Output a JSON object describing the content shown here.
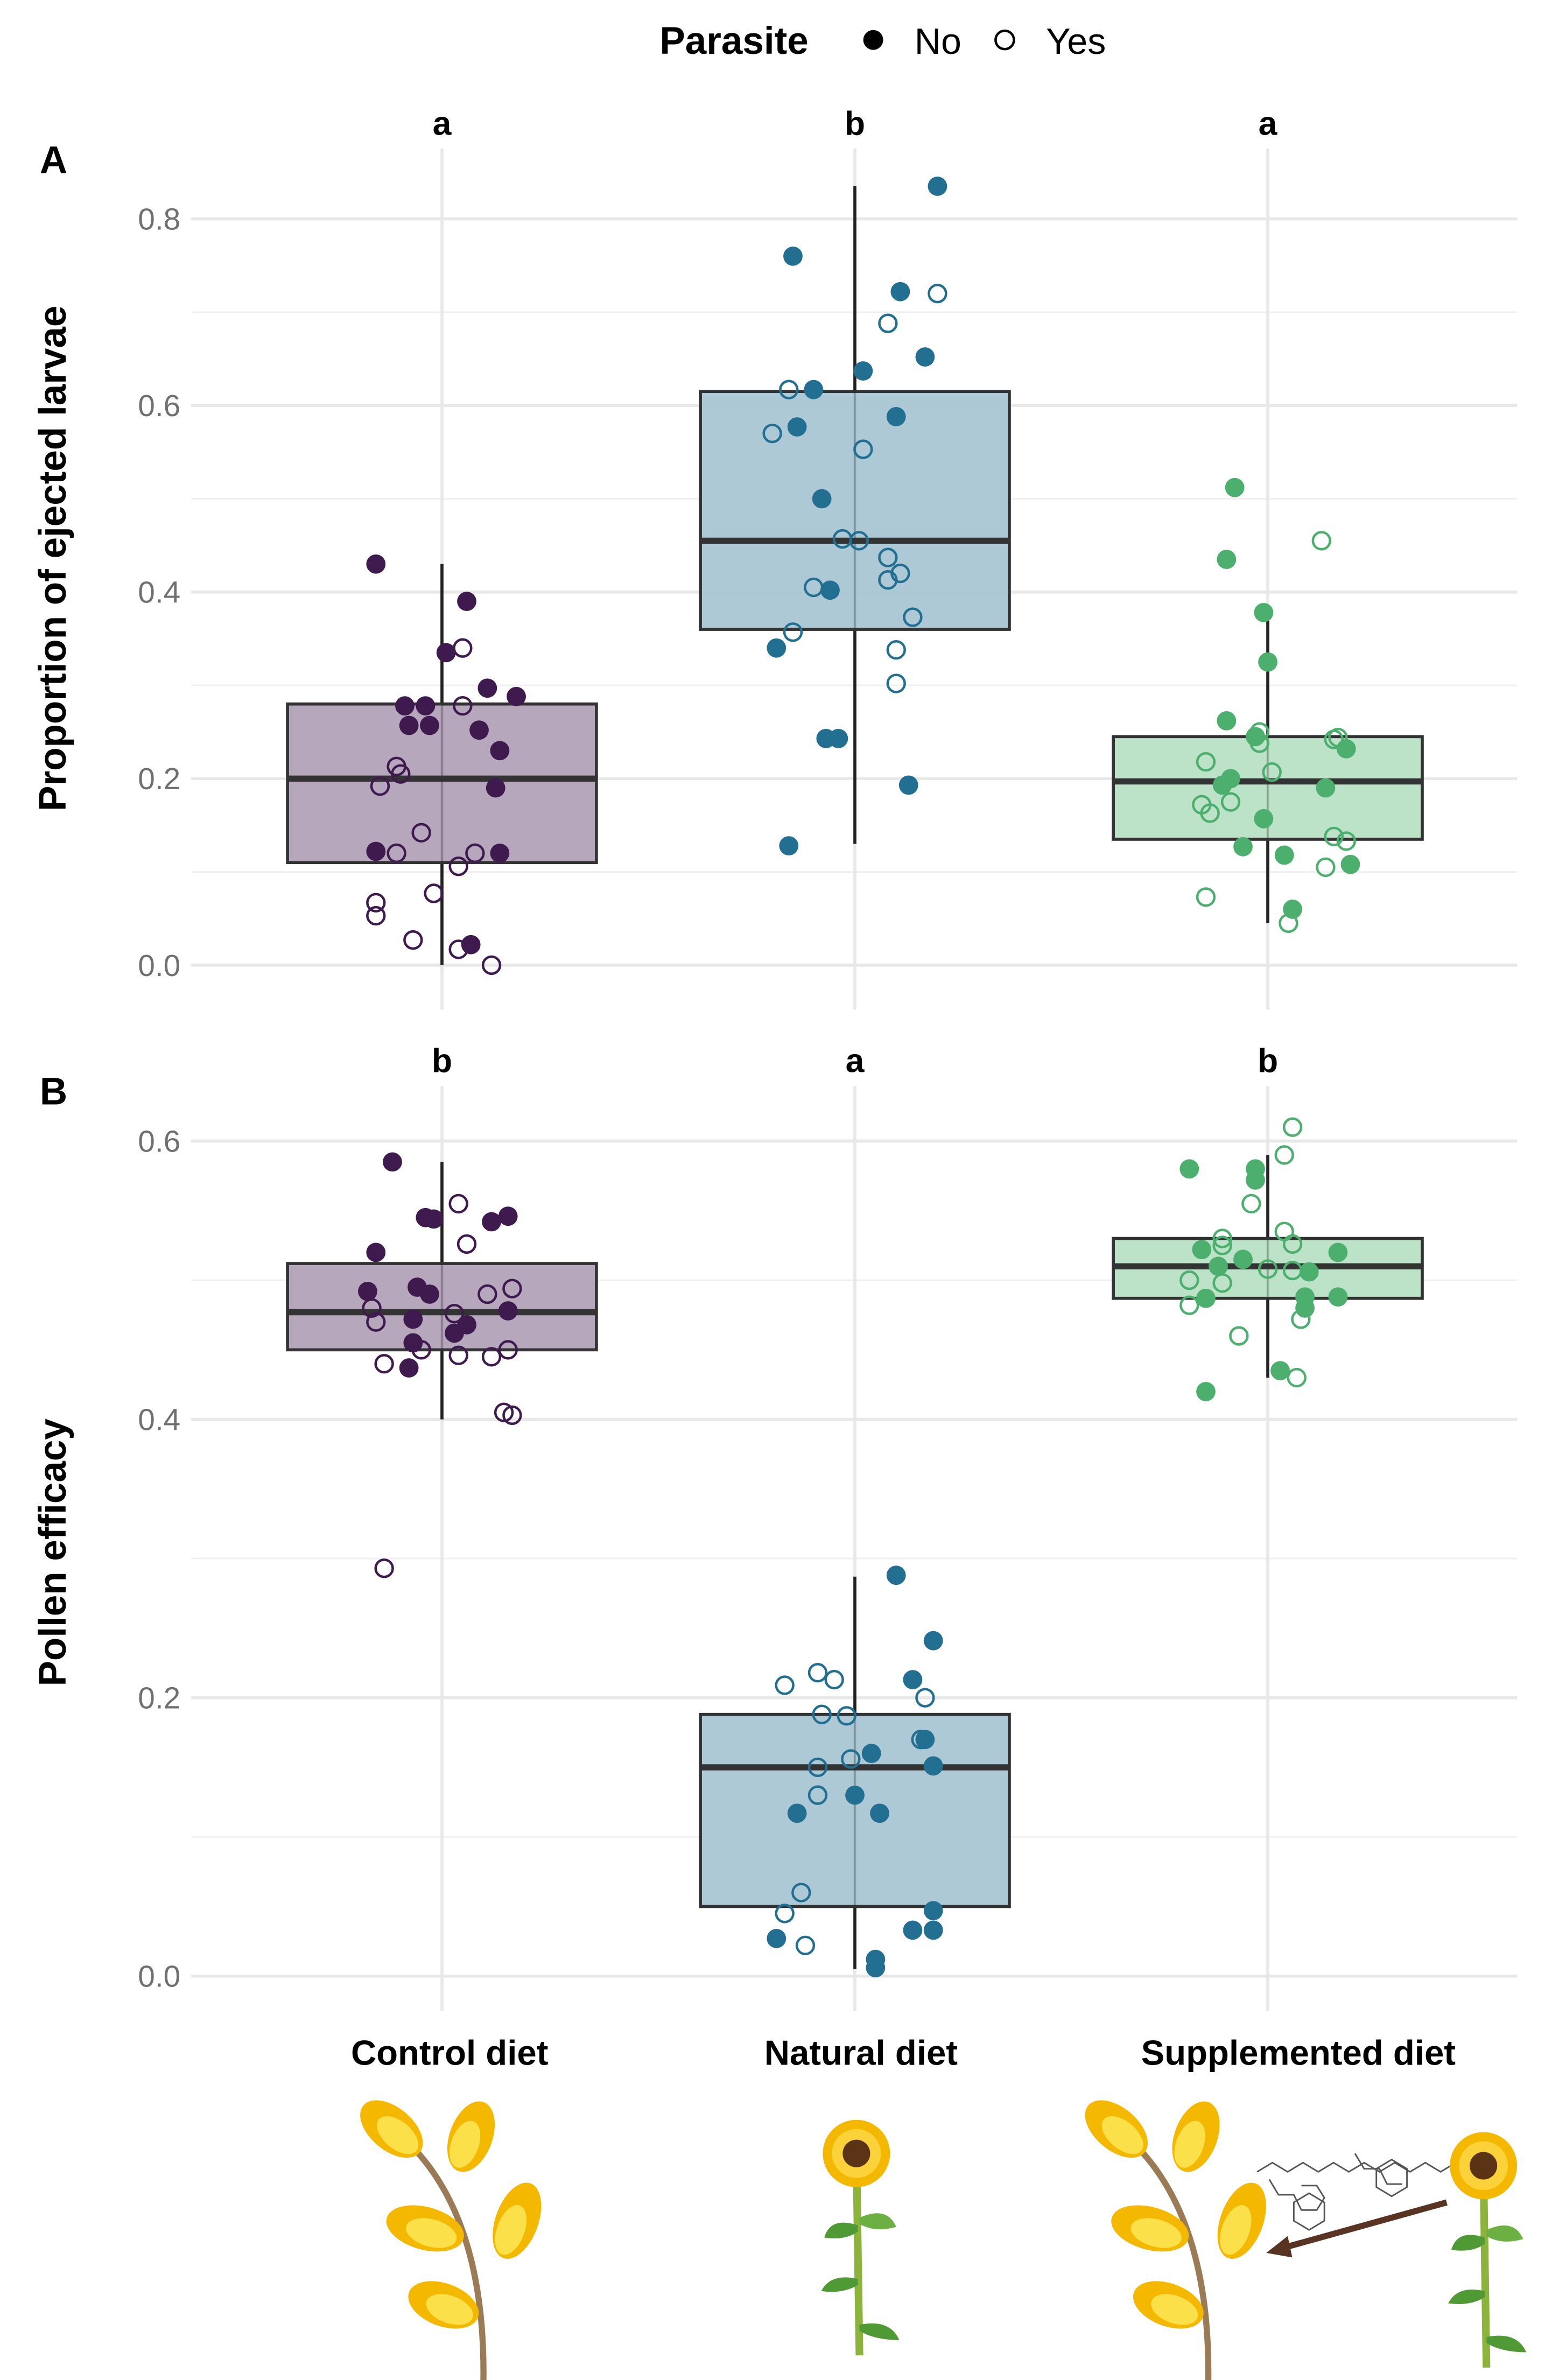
{
  "legend": {
    "title": "Parasite",
    "items": [
      {
        "label": "No",
        "filled": true
      },
      {
        "label": "Yes",
        "filled": false
      }
    ]
  },
  "categories": [
    "Control diet",
    "Natural diet",
    "Supplemented diet"
  ],
  "colors": {
    "Control diet": {
      "point": "#3f1a4f",
      "fill": "#b2a2b8"
    },
    "Natural diet": {
      "point": "#236f92",
      "fill": "#a9c6d3"
    },
    "Supplemented diet": {
      "point": "#4caf6e",
      "fill": "#b8e0c4"
    }
  },
  "chart_data": [
    {
      "type": "box+jitter",
      "panel": "A",
      "ylabel": "Proportion of ejected larvae",
      "ylim": [
        0,
        0.8
      ],
      "yticks": [
        "0.0",
        "0.2",
        "0.4",
        "0.6",
        "0.8"
      ],
      "significance": [
        "a",
        "b",
        "a"
      ],
      "boxes": [
        {
          "category": "Control diet",
          "min": 0.0,
          "q1": 0.11,
          "median": 0.2,
          "q3": 0.28,
          "max": 0.43
        },
        {
          "category": "Natural diet",
          "min": 0.13,
          "q1": 0.36,
          "median": 0.455,
          "q3": 0.615,
          "max": 0.835
        },
        {
          "category": "Supplemented diet",
          "min": 0.045,
          "q1": 0.135,
          "median": 0.197,
          "q3": 0.245,
          "max": 0.37
        }
      ],
      "points": [
        {
          "category": "Control diet",
          "parasite_no": [
            [
              -0.16,
              0.43
            ],
            [
              0.06,
              0.39
            ],
            [
              0.01,
              0.335
            ],
            [
              0.11,
              0.297
            ],
            [
              0.18,
              0.288
            ],
            [
              -0.09,
              0.278
            ],
            [
              -0.04,
              0.278
            ],
            [
              -0.08,
              0.257
            ],
            [
              -0.03,
              0.257
            ],
            [
              0.09,
              0.252
            ],
            [
              0.14,
              0.23
            ],
            [
              0.13,
              0.19
            ],
            [
              -0.16,
              0.122
            ],
            [
              0.14,
              0.12
            ],
            [
              0.07,
              0.022
            ]
          ],
          "parasite_yes": [
            [
              0.05,
              0.34
            ],
            [
              0.05,
              0.278
            ],
            [
              -0.11,
              0.213
            ],
            [
              -0.1,
              0.205
            ],
            [
              -0.15,
              0.192
            ],
            [
              -0.05,
              0.142
            ],
            [
              -0.11,
              0.12
            ],
            [
              0.08,
              0.12
            ],
            [
              0.04,
              0.106
            ],
            [
              -0.02,
              0.077
            ],
            [
              -0.16,
              0.067
            ],
            [
              -0.16,
              0.053
            ],
            [
              -0.07,
              0.027
            ],
            [
              0.04,
              0.017
            ],
            [
              0.12,
              0.0
            ]
          ]
        },
        {
          "category": "Natural diet",
          "parasite_no": [
            [
              0.2,
              0.835
            ],
            [
              -0.15,
              0.76
            ],
            [
              0.11,
              0.722
            ],
            [
              0.17,
              0.652
            ],
            [
              0.02,
              0.637
            ],
            [
              -0.1,
              0.617
            ],
            [
              0.1,
              0.588
            ],
            [
              -0.14,
              0.577
            ],
            [
              -0.08,
              0.5
            ],
            [
              -0.06,
              0.402
            ],
            [
              -0.19,
              0.34
            ],
            [
              -0.07,
              0.243
            ],
            [
              -0.04,
              0.243
            ],
            [
              0.13,
              0.193
            ],
            [
              -0.16,
              0.128
            ]
          ],
          "parasite_yes": [
            [
              0.2,
              0.72
            ],
            [
              0.08,
              0.688
            ],
            [
              -0.16,
              0.617
            ],
            [
              -0.2,
              0.57
            ],
            [
              0.02,
              0.553
            ],
            [
              -0.03,
              0.457
            ],
            [
              0.01,
              0.455
            ],
            [
              0.08,
              0.437
            ],
            [
              0.11,
              0.42
            ],
            [
              0.08,
              0.413
            ],
            [
              -0.1,
              0.405
            ],
            [
              0.14,
              0.373
            ],
            [
              -0.15,
              0.357
            ],
            [
              0.1,
              0.338
            ],
            [
              0.1,
              0.302
            ]
          ]
        },
        {
          "category": "Supplemented diet",
          "parasite_no": [
            [
              -0.08,
              0.512
            ],
            [
              -0.1,
              0.435
            ],
            [
              -0.01,
              0.378
            ],
            [
              0.0,
              0.325
            ],
            [
              -0.1,
              0.262
            ],
            [
              -0.03,
              0.245
            ],
            [
              0.19,
              0.232
            ],
            [
              -0.11,
              0.193
            ],
            [
              -0.09,
              0.2
            ],
            [
              0.14,
              0.19
            ],
            [
              -0.01,
              0.157
            ],
            [
              -0.06,
              0.127
            ],
            [
              0.04,
              0.118
            ],
            [
              0.2,
              0.108
            ],
            [
              0.06,
              0.06
            ]
          ],
          "parasite_yes": [
            [
              0.13,
              0.455
            ],
            [
              -0.02,
              0.25
            ],
            [
              -0.02,
              0.238
            ],
            [
              0.16,
              0.242
            ],
            [
              0.17,
              0.244
            ],
            [
              -0.15,
              0.218
            ],
            [
              0.01,
              0.207
            ],
            [
              -0.16,
              0.172
            ],
            [
              -0.09,
              0.175
            ],
            [
              -0.14,
              0.163
            ],
            [
              0.16,
              0.138
            ],
            [
              0.19,
              0.133
            ],
            [
              0.14,
              0.105
            ],
            [
              -0.15,
              0.073
            ],
            [
              0.05,
              0.045
            ]
          ]
        }
      ]
    },
    {
      "type": "box+jitter",
      "panel": "B",
      "ylabel": "Pollen efficacy",
      "ylim": [
        0,
        0.6
      ],
      "yticks": [
        "0.0",
        "0.2",
        "0.4",
        "0.6"
      ],
      "significance": [
        "b",
        "a",
        "b"
      ],
      "boxes": [
        {
          "category": "Control diet",
          "min": 0.4,
          "q1": 0.45,
          "median": 0.477,
          "q3": 0.512,
          "max": 0.585
        },
        {
          "category": "Natural diet",
          "min": 0.005,
          "q1": 0.05,
          "median": 0.15,
          "q3": 0.188,
          "max": 0.287
        },
        {
          "category": "Supplemented diet",
          "min": 0.43,
          "q1": 0.487,
          "median": 0.51,
          "q3": 0.53,
          "max": 0.59
        }
      ],
      "points": [
        {
          "category": "Control diet",
          "parasite_no": [
            [
              -0.12,
              0.585
            ],
            [
              -0.04,
              0.545
            ],
            [
              -0.02,
              0.544
            ],
            [
              0.12,
              0.542
            ],
            [
              0.16,
              0.546
            ],
            [
              -0.16,
              0.52
            ],
            [
              -0.18,
              0.492
            ],
            [
              -0.06,
              0.495
            ],
            [
              -0.03,
              0.49
            ],
            [
              0.16,
              0.478
            ],
            [
              -0.07,
              0.472
            ],
            [
              0.06,
              0.468
            ],
            [
              0.03,
              0.462
            ],
            [
              -0.07,
              0.455
            ],
            [
              -0.08,
              0.437
            ]
          ],
          "parasite_yes": [
            [
              0.04,
              0.555
            ],
            [
              0.06,
              0.526
            ],
            [
              0.17,
              0.494
            ],
            [
              0.11,
              0.49
            ],
            [
              -0.17,
              0.48
            ],
            [
              0.03,
              0.476
            ],
            [
              -0.16,
              0.47
            ],
            [
              -0.05,
              0.45
            ],
            [
              0.16,
              0.45
            ],
            [
              0.04,
              0.446
            ],
            [
              0.12,
              0.445
            ],
            [
              -0.14,
              0.44
            ],
            [
              0.15,
              0.405
            ],
            [
              0.17,
              0.403
            ],
            [
              -0.14,
              0.293
            ]
          ]
        },
        {
          "category": "Natural diet",
          "parasite_no": [
            [
              0.1,
              0.288
            ],
            [
              0.19,
              0.241
            ],
            [
              0.14,
              0.213
            ],
            [
              0.17,
              0.17
            ],
            [
              0.04,
              0.16
            ],
            [
              0.19,
              0.151
            ],
            [
              0.0,
              0.13
            ],
            [
              -0.14,
              0.117
            ],
            [
              0.06,
              0.117
            ],
            [
              0.19,
              0.047
            ],
            [
              0.14,
              0.033
            ],
            [
              0.19,
              0.033
            ],
            [
              -0.19,
              0.027
            ],
            [
              0.05,
              0.012
            ],
            [
              0.05,
              0.006
            ]
          ],
          "parasite_yes": [
            [
              -0.09,
              0.218
            ],
            [
              -0.05,
              0.213
            ],
            [
              -0.17,
              0.209
            ],
            [
              0.17,
              0.2
            ],
            [
              -0.08,
              0.188
            ],
            [
              -0.02,
              0.187
            ],
            [
              0.16,
              0.17
            ],
            [
              -0.09,
              0.15
            ],
            [
              -0.01,
              0.156
            ],
            [
              -0.09,
              0.13
            ],
            [
              -0.13,
              0.06
            ],
            [
              -0.17,
              0.045
            ],
            [
              -0.12,
              0.022
            ]
          ]
        },
        {
          "category": "Supplemented diet",
          "parasite_no": [
            [
              -0.19,
              0.58
            ],
            [
              -0.03,
              0.58
            ],
            [
              -0.03,
              0.572
            ],
            [
              -0.16,
              0.522
            ],
            [
              0.17,
              0.52
            ],
            [
              -0.12,
              0.51
            ],
            [
              -0.06,
              0.515
            ],
            [
              0.1,
              0.506
            ],
            [
              -0.15,
              0.487
            ],
            [
              0.09,
              0.488
            ],
            [
              0.09,
              0.48
            ],
            [
              0.17,
              0.488
            ],
            [
              0.03,
              0.435
            ],
            [
              -0.15,
              0.42
            ]
          ],
          "parasite_yes": [
            [
              0.06,
              0.61
            ],
            [
              0.04,
              0.59
            ],
            [
              -0.04,
              0.555
            ],
            [
              -0.11,
              0.53
            ],
            [
              -0.11,
              0.525
            ],
            [
              0.04,
              0.535
            ],
            [
              0.06,
              0.526
            ],
            [
              0.0,
              0.508
            ],
            [
              0.06,
              0.507
            ],
            [
              -0.19,
              0.5
            ],
            [
              -0.11,
              0.498
            ],
            [
              -0.19,
              0.482
            ],
            [
              0.08,
              0.472
            ],
            [
              -0.07,
              0.46
            ],
            [
              0.07,
              0.43
            ]
          ]
        }
      ]
    }
  ]
}
